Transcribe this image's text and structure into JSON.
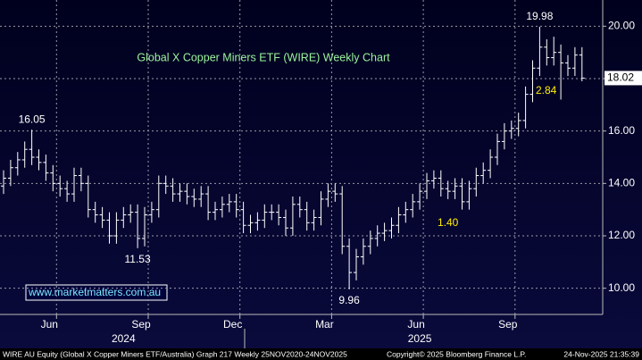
{
  "chart_data": {
    "type": "ohlc",
    "title": "Global X Copper Miners ETF (WIRE) Weekly Chart",
    "watermark": "www.marketmatters.com.au",
    "categories": [
      null,
      null,
      null,
      null,
      null,
      null,
      null,
      "Jun",
      null,
      null,
      null,
      null,
      null,
      null,
      null,
      null,
      null,
      null,
      null,
      null,
      "Sep",
      null,
      null,
      null,
      null,
      null,
      null,
      null,
      null,
      null,
      null,
      null,
      null,
      "Dec",
      null,
      null,
      null,
      null,
      null,
      null,
      null,
      null,
      null,
      null,
      null,
      null,
      "Mar",
      null,
      null,
      null,
      null,
      null,
      null,
      null,
      null,
      null,
      null,
      null,
      null,
      "Jun",
      null,
      null,
      null,
      null,
      null,
      null,
      null,
      null,
      null,
      null,
      null,
      null,
      "Sep",
      null,
      null,
      null,
      null,
      null,
      null,
      null,
      null,
      null,
      null
    ],
    "year_categories": [
      null,
      null,
      null,
      null,
      null,
      null,
      null,
      null,
      null,
      null,
      null,
      null,
      null,
      null,
      null,
      null,
      null,
      "2024",
      null,
      null,
      null,
      null,
      null,
      null,
      null,
      null,
      null,
      null,
      null,
      null,
      null,
      null,
      null,
      null,
      null,
      null,
      null,
      null,
      null,
      null,
      null,
      null,
      null,
      null,
      null,
      null,
      null,
      null,
      null,
      null,
      null,
      null,
      null,
      null,
      null,
      null,
      null,
      null,
      null,
      "2025",
      null,
      null,
      null,
      null,
      null,
      null,
      null,
      null,
      null,
      null,
      null,
      null,
      null,
      null,
      null,
      null,
      null,
      null,
      null,
      null,
      null,
      null,
      null
    ],
    "open": [
      13.9,
      14.2,
      14.6,
      14.9,
      15.3,
      15.0,
      14.8,
      14.4,
      14.0,
      13.8,
      13.6,
      14.3,
      14.0,
      13.0,
      12.8,
      12.6,
      12.0,
      12.6,
      12.8,
      12.9,
      11.9,
      12.8,
      13.0,
      14.0,
      13.9,
      13.6,
      13.7,
      13.5,
      13.4,
      13.6,
      12.9,
      13.0,
      13.2,
      13.3,
      13.0,
      12.4,
      12.5,
      12.6,
      12.9,
      12.9,
      12.7,
      12.3,
      13.2,
      13.0,
      12.5,
      12.7,
      13.4,
      13.7,
      13.6,
      11.6,
      10.6,
      11.2,
      11.6,
      11.9,
      12.1,
      12.2,
      12.4,
      12.8,
      13.0,
      13.3,
      13.7,
      14.1,
      14.2,
      13.8,
      13.7,
      13.9,
      13.3,
      13.8,
      14.3,
      14.5,
      15.0,
      15.6,
      16.0,
      16.1,
      16.4,
      17.4,
      18.4,
      19.2,
      18.8,
      19.0,
      18.6,
      18.4,
      18.9
    ],
    "high": [
      14.5,
      14.9,
      15.2,
      15.6,
      16.05,
      15.3,
      15.1,
      14.7,
      14.3,
      14.1,
      14.6,
      14.6,
      14.3,
      13.3,
      13.1,
      12.9,
      12.9,
      13.1,
      13.2,
      13.2,
      13.1,
      13.3,
      14.3,
      14.3,
      14.2,
      14.0,
      14.0,
      13.8,
      13.9,
      13.9,
      13.3,
      13.5,
      13.6,
      13.6,
      13.3,
      12.8,
      12.9,
      13.2,
      13.2,
      13.2,
      13.0,
      13.5,
      13.5,
      13.3,
      13.0,
      13.7,
      14.0,
      14.0,
      13.9,
      11.9,
      11.5,
      11.9,
      12.2,
      12.4,
      12.5,
      12.7,
      13.1,
      13.3,
      13.6,
      14.0,
      14.4,
      14.5,
      14.5,
      14.1,
      14.2,
      14.2,
      14.1,
      14.6,
      14.8,
      15.3,
      15.9,
      16.3,
      16.4,
      16.7,
      17.7,
      18.7,
      19.98,
      19.5,
      19.6,
      19.3,
      18.9,
      19.2,
      19.2
    ],
    "low": [
      13.6,
      13.9,
      14.3,
      14.6,
      14.7,
      14.5,
      14.1,
      13.7,
      13.5,
      13.3,
      13.3,
      13.7,
      12.7,
      12.5,
      12.3,
      11.7,
      11.7,
      12.3,
      12.5,
      11.53,
      11.6,
      12.5,
      12.7,
      13.6,
      13.3,
      13.3,
      13.2,
      13.1,
      13.1,
      12.6,
      12.6,
      12.7,
      12.9,
      12.7,
      12.1,
      12.1,
      12.2,
      12.3,
      12.6,
      12.4,
      12.0,
      12.0,
      12.7,
      12.2,
      12.2,
      12.4,
      13.1,
      13.3,
      11.3,
      9.96,
      10.3,
      10.9,
      11.3,
      11.6,
      11.8,
      11.9,
      12.1,
      12.5,
      12.7,
      13.0,
      13.4,
      13.8,
      13.5,
      13.4,
      13.4,
      13.0,
      13.0,
      13.5,
      14.0,
      14.2,
      14.7,
      15.3,
      15.7,
      15.8,
      16.1,
      17.1,
      18.1,
      18.5,
      18.5,
      17.2,
      18.1,
      18.1,
      17.9
    ],
    "close": [
      14.2,
      14.6,
      14.9,
      15.3,
      15.0,
      14.8,
      14.4,
      14.0,
      13.8,
      13.6,
      14.3,
      14.0,
      13.0,
      12.8,
      12.6,
      12.0,
      12.6,
      12.8,
      12.9,
      11.9,
      12.8,
      13.0,
      14.0,
      13.9,
      13.6,
      13.7,
      13.5,
      13.4,
      13.6,
      12.9,
      13.0,
      13.2,
      13.3,
      13.0,
      12.4,
      12.5,
      12.6,
      12.9,
      12.9,
      12.7,
      12.3,
      13.2,
      13.0,
      12.5,
      12.7,
      13.4,
      13.7,
      13.6,
      11.6,
      10.6,
      11.2,
      11.6,
      11.9,
      12.1,
      12.2,
      12.4,
      12.8,
      13.0,
      13.3,
      13.7,
      14.1,
      14.2,
      13.8,
      13.7,
      13.9,
      13.3,
      13.8,
      14.3,
      14.5,
      15.0,
      15.6,
      16.0,
      16.1,
      16.4,
      17.4,
      18.4,
      19.2,
      18.8,
      19.0,
      18.6,
      18.4,
      18.9,
      18.02
    ],
    "color": "#ffffff",
    "ylim": [
      9.0,
      21.0
    ],
    "yticks": [
      {
        "value": 10,
        "label": "10.00"
      },
      {
        "value": 12,
        "label": "12.00"
      },
      {
        "value": 14,
        "label": "14.00"
      },
      {
        "value": 16,
        "label": "16.00"
      },
      {
        "value": 18,
        "label": "18.00"
      },
      {
        "value": 20,
        "label": "20.00"
      }
    ],
    "grid": true,
    "last_price": 18.02,
    "annotations": [
      16.05,
      11.53,
      9.96,
      19.98
    ],
    "notes": [
      "2.84",
      "1.40"
    ],
    "footer": [
      "WIRE AU Equity (Global X Copper Miners ETF/Australia) Graph 217 Weekly 25NOV2020-24NOV2025",
      "Copyright© 2025 Bloomberg Finance L.P.",
      "24-Nov-2025 21:35:39"
    ]
  }
}
